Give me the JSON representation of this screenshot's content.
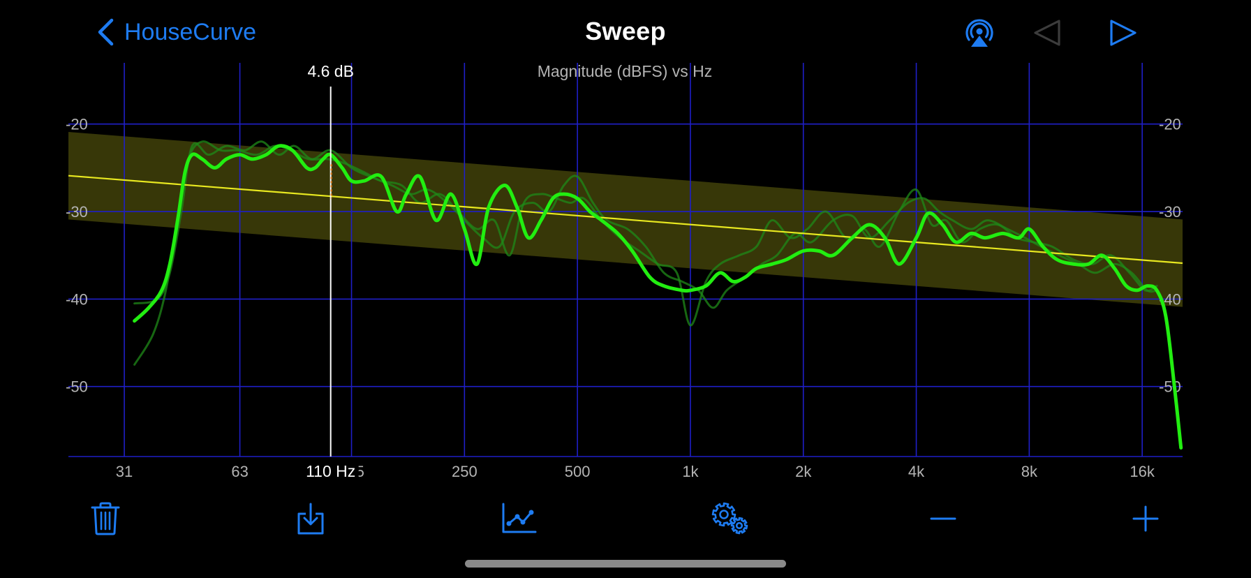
{
  "nav": {
    "back_label": "HouseCurve",
    "title": "Sweep",
    "icons": [
      "chevron-left-icon",
      "airplay-audio-icon",
      "triangle-left-icon",
      "play-icon"
    ]
  },
  "colors": {
    "accent": "#1E7CF2",
    "grid": "#1F1FC8",
    "response": "#22EE11",
    "target": "#E8E820",
    "target_band": "#3A3A08",
    "axis_text": "#B4B4B4"
  },
  "chart_data": {
    "type": "line",
    "title": "Magnitude (dBFS) vs Hz",
    "x_scale": "log",
    "xlim": [
      22,
      20500
    ],
    "ylim": [
      -58,
      -13
    ],
    "x_ticks": [
      {
        "value": 31,
        "label": "31"
      },
      {
        "value": 63,
        "label": "63"
      },
      {
        "value": 125,
        "label": "125"
      },
      {
        "value": 250,
        "label": "250"
      },
      {
        "value": 500,
        "label": "500"
      },
      {
        "value": 1000,
        "label": "1k"
      },
      {
        "value": 2000,
        "label": "2k"
      },
      {
        "value": 4000,
        "label": "4k"
      },
      {
        "value": 8000,
        "label": "8k"
      },
      {
        "value": 16000,
        "label": "16k"
      }
    ],
    "y_ticks": [
      {
        "value": -20,
        "label": "-20"
      },
      {
        "value": -30,
        "label": "-30"
      },
      {
        "value": -40,
        "label": "-40"
      },
      {
        "value": -50,
        "label": "-50"
      }
    ],
    "cursor": {
      "freq": 110,
      "freq_label": "110 Hz",
      "db_label": "4.6 dB"
    },
    "target": {
      "start": [
        22,
        -25.9
      ],
      "end": [
        20500,
        -35.9
      ],
      "band_width_db": 5
    },
    "series": [
      {
        "role": "smoothed",
        "x": [
          33,
          36,
          39,
          41,
          43,
          45,
          47,
          50,
          54,
          58,
          63,
          68,
          74,
          80,
          87,
          95,
          100,
          105,
          110,
          118,
          125,
          135,
          150,
          165,
          175,
          190,
          210,
          230,
          250,
          270,
          290,
          320,
          345,
          370,
          400,
          430,
          460,
          500,
          540,
          580,
          640,
          700,
          780,
          850,
          950,
          1000,
          1100,
          1200,
          1300,
          1400,
          1500,
          1650,
          1800,
          2000,
          2200,
          2400,
          2700,
          3000,
          3300,
          3600,
          4000,
          4300,
          4700,
          5100,
          5600,
          6100,
          6800,
          7500,
          8000,
          8700,
          9500,
          10500,
          11500,
          12500,
          13500,
          14500,
          15500,
          16500,
          17500,
          18500,
          19500,
          20300
        ],
        "y": [
          -42.5,
          -41,
          -39,
          -36,
          -31,
          -25.5,
          -23.5,
          -24,
          -25,
          -24,
          -23.5,
          -24,
          -23.5,
          -22.5,
          -23,
          -25,
          -25,
          -24,
          -23.5,
          -25,
          -26.5,
          -26.5,
          -26,
          -30,
          -28,
          -26,
          -31,
          -28,
          -32,
          -36,
          -29.5,
          -27,
          -29.5,
          -33,
          -31,
          -28.5,
          -28,
          -28.5,
          -30,
          -31,
          -32.5,
          -34.5,
          -37.5,
          -38.5,
          -39,
          -39,
          -38.5,
          -37,
          -38,
          -37.5,
          -36.5,
          -36,
          -35.5,
          -34.5,
          -34.5,
          -35,
          -33,
          -31.5,
          -33,
          -36,
          -33,
          -30.2,
          -31.5,
          -33.5,
          -32.5,
          -33,
          -32.5,
          -33,
          -32,
          -34,
          -35.5,
          -36,
          -36,
          -35,
          -36.5,
          -38.5,
          -39,
          -38.5,
          -39,
          -42,
          -50,
          -57
        ]
      },
      {
        "role": "raw-1",
        "x": [
          33,
          38,
          41,
          44,
          47,
          52,
          58,
          65,
          72,
          80,
          88,
          98,
          110,
          125,
          140,
          160,
          180,
          200,
          225,
          250,
          280,
          310,
          340,
          380,
          420,
          460,
          500,
          550,
          600,
          680,
          760,
          850,
          950,
          1050,
          1150,
          1250,
          1400,
          1550,
          1700,
          1900,
          2100,
          2400,
          2700,
          3000,
          3400,
          3800,
          4200,
          4600,
          5000,
          5600,
          6200,
          7000,
          7800,
          8600,
          9600,
          10800,
          12000,
          13500,
          15000,
          16500,
          17500
        ],
        "y": [
          -40.5,
          -40,
          -37,
          -30,
          -22.5,
          -23.5,
          -22.5,
          -23,
          -22,
          -23.5,
          -22.5,
          -24,
          -23,
          -25,
          -26,
          -27,
          -28,
          -27.5,
          -29,
          -31,
          -33,
          -34,
          -30,
          -29,
          -30,
          -27,
          -26,
          -29,
          -31,
          -32,
          -34,
          -37,
          -38,
          -39,
          -41,
          -39,
          -37.5,
          -36,
          -35,
          -32.5,
          -33.5,
          -31,
          -30.5,
          -33,
          -31,
          -29,
          -28.5,
          -30,
          -31,
          -32,
          -31,
          -32,
          -33,
          -34,
          -35,
          -36,
          -37,
          -36,
          -37,
          -39,
          -39
        ]
      },
      {
        "role": "raw-2",
        "x": [
          33,
          37,
          40,
          43,
          46,
          50,
          56,
          62,
          70,
          78,
          86,
          96,
          108,
          120,
          135,
          150,
          170,
          190,
          215,
          240,
          270,
          300,
          330,
          360,
          400,
          440,
          480,
          520,
          580,
          650,
          730,
          820,
          920,
          1000,
          1100,
          1200,
          1350,
          1500,
          1650,
          1850,
          2050,
          2300,
          2600,
          2900,
          3200,
          3600,
          4000,
          4400,
          4800,
          5300,
          5900,
          6600,
          7400,
          8200,
          9200,
          10500,
          11800,
          13200,
          14800,
          16300,
          17500
        ],
        "y": [
          -47.5,
          -44,
          -39,
          -31,
          -24,
          -22,
          -23,
          -23,
          -23.5,
          -22.5,
          -23,
          -24,
          -24,
          -24.5,
          -25.5,
          -26.5,
          -27,
          -29,
          -28,
          -30,
          -32,
          -31,
          -35,
          -29,
          -28,
          -28.5,
          -29,
          -28.5,
          -31,
          -33,
          -34.5,
          -36,
          -37,
          -43,
          -38,
          -36,
          -35,
          -34,
          -31,
          -33,
          -32,
          -30,
          -33,
          -32,
          -34,
          -30,
          -27.5,
          -31.5,
          -31,
          -33.5,
          -32,
          -31.5,
          -33,
          -33.5,
          -34,
          -35.5,
          -36,
          -35,
          -37,
          -39,
          -38.5
        ]
      }
    ]
  },
  "toolbar": {
    "icons": [
      "trash-icon",
      "download-icon",
      "chart-line-icon",
      "gears-icon",
      "minus-icon",
      "plus-icon"
    ]
  }
}
